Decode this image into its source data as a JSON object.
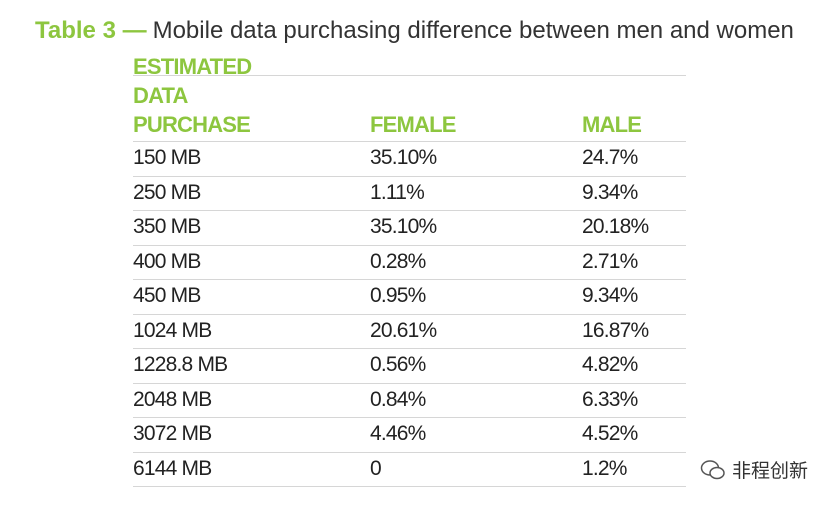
{
  "header": {
    "label": "Table 3 —",
    "title": "Mobile data purchasing difference between men and women"
  },
  "table": {
    "columns": [
      "ESTIMATED DATA PURCHASE",
      "FEMALE",
      "MALE"
    ],
    "rows": [
      [
        "150 MB",
        "35.10%",
        "24.7%"
      ],
      [
        "250 MB",
        "1.11%",
        "9.34%"
      ],
      [
        "350 MB",
        "35.10%",
        "20.18%"
      ],
      [
        "400 MB",
        "0.28%",
        "2.71%"
      ],
      [
        "450 MB",
        "0.95%",
        "9.34%"
      ],
      [
        "1024 MB",
        "20.61%",
        "16.87%"
      ],
      [
        "1228.8 MB",
        "0.56%",
        "4.82%"
      ],
      [
        "2048 MB",
        "0.84%",
        "6.33%"
      ],
      [
        "3072 MB",
        "4.46%",
        "4.52%"
      ],
      [
        "6144 MB",
        "0",
        "1.2%"
      ]
    ]
  },
  "watermark": "非程创新"
}
